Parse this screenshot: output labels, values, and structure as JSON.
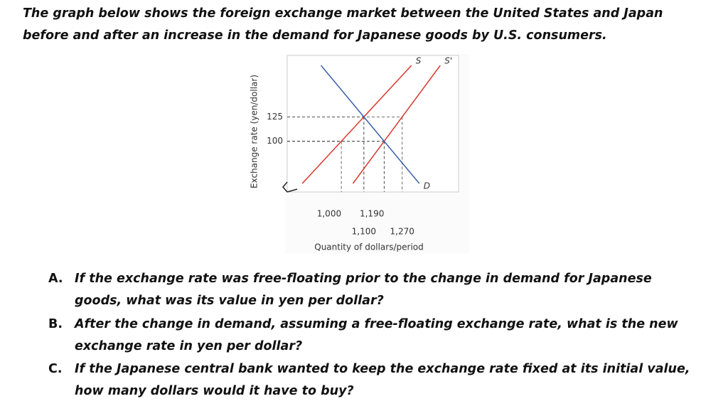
{
  "header": {
    "text": "The graph below shows the foreign exchange market between the United States and Japan before and after an increase in the demand for Japanese goods by U.S. consumers."
  },
  "chart_data": {
    "type": "line",
    "x_label": "Quantity of dollars/period",
    "y_label": "Exchange rate (yen/dollar)",
    "xlim": [
      760,
      1520
    ],
    "ylim": [
      48,
      188
    ],
    "xticks": [
      {
        "value": 1000,
        "label": "1,000"
      },
      {
        "value": 1100,
        "label": "1,100"
      },
      {
        "value": 1190,
        "label": "1,190"
      },
      {
        "value": 1270,
        "label": "1,270"
      }
    ],
    "yticks": [
      100,
      125
    ],
    "series": [
      {
        "name": "S",
        "color": "#d9372b",
        "x": [
          1000,
          1100
        ],
        "values": [
          100,
          125
        ]
      },
      {
        "name": "S'",
        "color": "#d9372b",
        "x": [
          1190,
          1270
        ],
        "values": [
          100,
          125
        ]
      },
      {
        "name": "D",
        "color": "#3a5fa8",
        "x": [
          1100,
          1190
        ],
        "values": [
          125,
          100
        ]
      }
    ]
  },
  "questions": [
    {
      "letter": "A.",
      "text": "If the exchange rate was free-floating prior to the change in demand for Japanese goods, what was its value in yen per dollar?"
    },
    {
      "letter": "B.",
      "text": "After the change in demand, assuming a free-floating exchange rate, what is the new exchange rate in yen per dollar?"
    },
    {
      "letter": "C.",
      "text": "If the Japanese central bank wanted to keep the exchange rate fixed at its initial value, how many dollars would it have to buy?"
    }
  ]
}
